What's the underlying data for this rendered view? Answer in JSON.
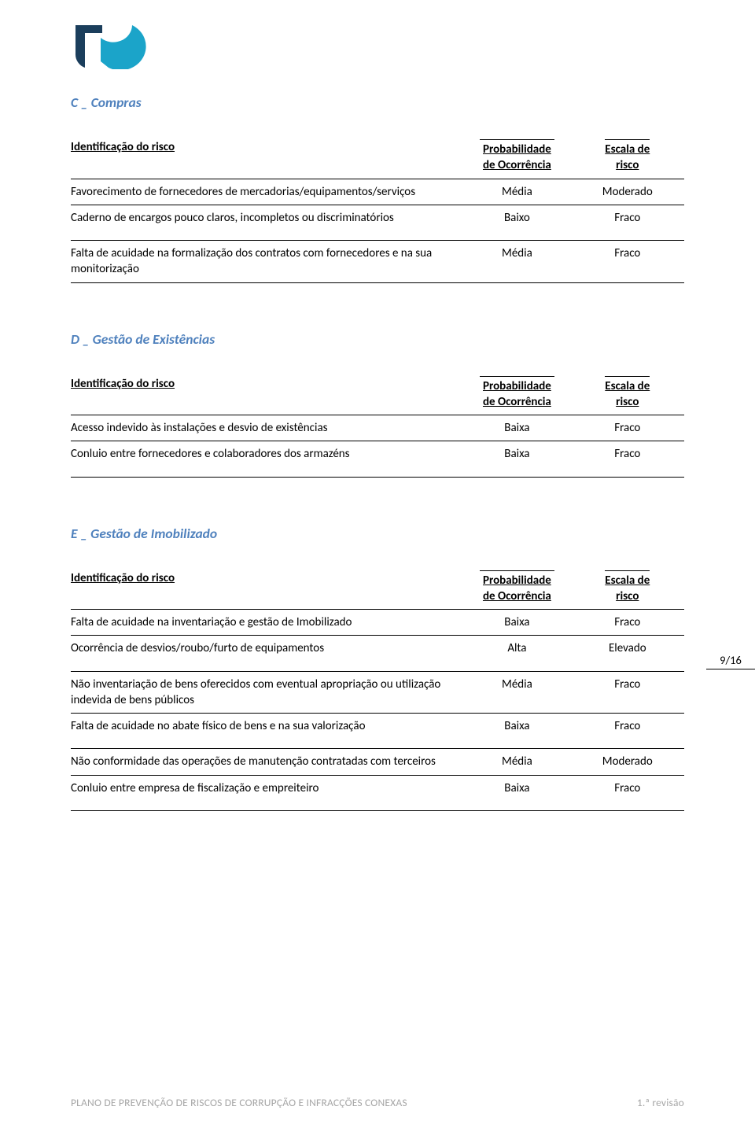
{
  "colors": {
    "accent": "#4f81bd",
    "text": "#000000",
    "footer": "#a6a6a6",
    "logo_dark": "#1b3e5c",
    "logo_light": "#1ba4c9",
    "border": "#000000",
    "background": "#ffffff"
  },
  "typography": {
    "body_family": "Calibri",
    "body_size_pt": 11,
    "heading_size_pt": 13,
    "heading_weight": "bold",
    "heading_style": "italic"
  },
  "page_number": "9/16",
  "footer": {
    "left": "PLANO DE PREVENÇÃO DE RISCOS DE CORRUPÇÃO E INFRACÇÕES CONEXAS",
    "right": "1.ª revisão"
  },
  "headers": {
    "id": "Identificação do risco",
    "prob_l1": "Probabilidade",
    "prob_l2": "de Ocorrência",
    "risk_l1": "Escala de",
    "risk_l2": "risco"
  },
  "sections": {
    "c": {
      "title": "C _ Compras",
      "rows": [
        {
          "id": "Favorecimento de fornecedores de mercadorias/equipamentos/serviços",
          "prob": "Média",
          "risk": "Moderado",
          "tall": false
        },
        {
          "id": "Caderno de encargos pouco claros, incompletos ou discriminatórios",
          "prob": "Baixo",
          "risk": "Fraco",
          "tall": true
        },
        {
          "id": "Falta de acuidade na formalização dos contratos com fornecedores e na sua monitorização",
          "prob": "Média",
          "risk": "Fraco",
          "tall": false
        }
      ]
    },
    "d": {
      "title": "D _ Gestão de Existências",
      "rows": [
        {
          "id": "Acesso indevido às instalações e desvio de existências",
          "prob": "Baixa",
          "risk": "Fraco",
          "tall": false
        },
        {
          "id": "Conluio entre fornecedores e colaboradores dos armazéns",
          "prob": "Baixa",
          "risk": "Fraco",
          "tall": true
        }
      ]
    },
    "e": {
      "title": "E _ Gestão de Imobilizado",
      "rows": [
        {
          "id": "Falta de acuidade na inventariação e gestão de Imobilizado",
          "prob": "Baixa",
          "risk": "Fraco",
          "tall": false
        },
        {
          "id": "Ocorrência de desvios/roubo/furto de equipamentos",
          "prob": "Alta",
          "risk": "Elevado",
          "tall": true
        },
        {
          "id": "Não inventariação de bens oferecidos com eventual apropriação ou utilização indevida de bens públicos",
          "prob": "Média",
          "risk": "Fraco",
          "tall": false
        },
        {
          "id": "Falta de acuidade no abate físico de bens e na sua valorização",
          "prob": "Baixa",
          "risk": "Fraco",
          "tall": true
        },
        {
          "id": "Não conformidade das operações de manutenção contratadas com terceiros",
          "prob": "Média",
          "risk": "Moderado",
          "tall": false
        },
        {
          "id": "Conluio entre empresa de fiscalização e empreiteiro",
          "prob": "Baixa",
          "risk": "Fraco",
          "tall": true
        }
      ]
    }
  }
}
